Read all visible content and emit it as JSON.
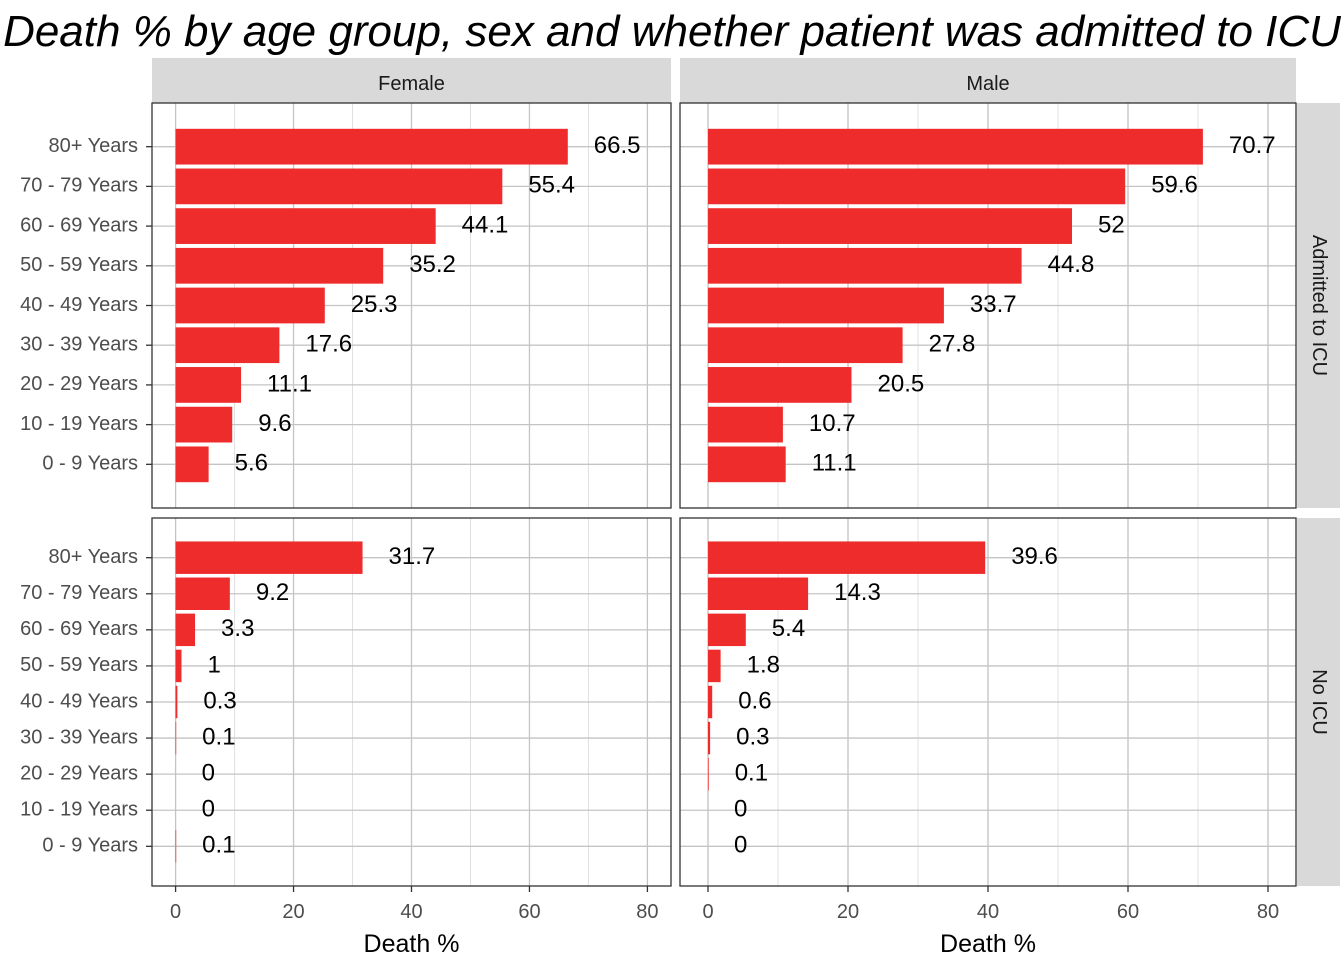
{
  "chart_data": {
    "type": "bar",
    "orientation": "horizontal",
    "title": "Death % by age group, sex and whether patient was admitted to ICU",
    "xlabel": "Death %",
    "ylabel": "",
    "xlim": [
      0,
      80
    ],
    "xticks": [
      0,
      20,
      40,
      60,
      80
    ],
    "grid": true,
    "bar_color": "#EE2C2C",
    "categories": [
      "80+ Years",
      "70 - 79 Years",
      "60 - 69 Years",
      "50 - 59 Years",
      "40 - 49 Years",
      "30 - 39 Years",
      "20 - 29 Years",
      "10 - 19 Years",
      "0 - 9 Years"
    ],
    "facet_columns": [
      "Female",
      "Male"
    ],
    "facet_rows": [
      "Admitted to ICU",
      "No ICU"
    ],
    "panels": [
      {
        "column": "Female",
        "row": "Admitted to ICU",
        "values": [
          66.5,
          55.4,
          44.1,
          35.2,
          25.3,
          17.6,
          11.1,
          9.6,
          5.6
        ]
      },
      {
        "column": "Male",
        "row": "Admitted to ICU",
        "values": [
          70.7,
          59.6,
          52,
          44.8,
          33.7,
          27.8,
          20.5,
          10.7,
          11.1
        ]
      },
      {
        "column": "Female",
        "row": "No ICU",
        "values": [
          31.7,
          9.2,
          3.3,
          1,
          0.3,
          0.1,
          0,
          0,
          0.1
        ]
      },
      {
        "column": "Male",
        "row": "No ICU",
        "values": [
          39.6,
          14.3,
          5.4,
          1.8,
          0.6,
          0.3,
          0.1,
          0,
          0
        ]
      }
    ]
  }
}
